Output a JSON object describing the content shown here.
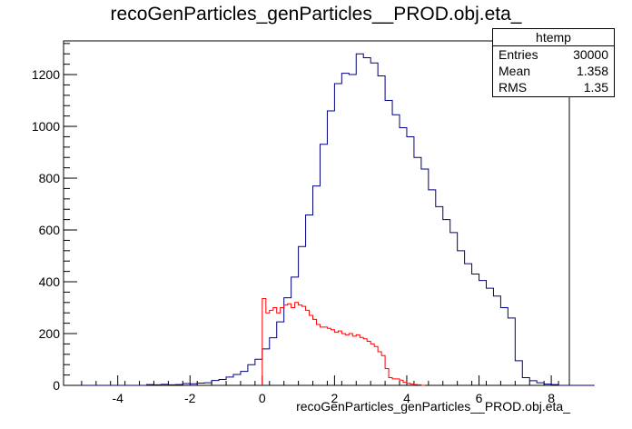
{
  "chart_data": {
    "type": "histogram",
    "title": "recoGenParticles_genParticles__PROD.obj.eta_",
    "xlabel": "recoGenParticles_genParticles__PROD.obj.eta_",
    "ylabel": "",
    "xlim": [
      -5.5,
      8.5
    ],
    "ylim": [
      0,
      1330
    ],
    "x_ticks": [
      -4,
      -2,
      0,
      2,
      4,
      6,
      8
    ],
    "y_ticks": [
      0,
      200,
      400,
      600,
      800,
      1000,
      1200
    ],
    "grid": false,
    "stats_box": {
      "title": "htemp",
      "entries_label": "Entries",
      "entries": "30000",
      "mean_label": "Mean",
      "mean": "1.358",
      "rms_label": "RMS",
      "rms": "1.35"
    },
    "series": [
      {
        "color": "#000080",
        "bin_width": 0.2,
        "bin_start": -5.0,
        "values": [
          0,
          0,
          0,
          0,
          0,
          0,
          0,
          0,
          0,
          3,
          2,
          4,
          2,
          3,
          7,
          6,
          9,
          10,
          19,
          23,
          32,
          42,
          54,
          80,
          101,
          141,
          184,
          245,
          338,
          418,
          536,
          658,
          770,
          931,
          1060,
          1165,
          1205,
          1200,
          1280,
          1265,
          1245,
          1195,
          1100,
          1045,
          995,
          960,
          880,
          835,
          755,
          690,
          640,
          590,
          520,
          470,
          430,
          405,
          375,
          345,
          300,
          260,
          95,
          30,
          18,
          10,
          5,
          3,
          0,
          0,
          0,
          0,
          0
        ]
      },
      {
        "color": "#ff0000",
        "bin_width": 0.1,
        "bin_start": 0.0,
        "values": [
          335,
          280,
          290,
          300,
          280,
          300,
          310,
          315,
          300,
          320,
          310,
          305,
          290,
          270,
          255,
          235,
          225,
          225,
          220,
          215,
          205,
          210,
          200,
          195,
          200,
          190,
          195,
          185,
          180,
          170,
          160,
          150,
          130,
          115,
          65,
          30,
          25,
          25,
          20,
          12,
          8,
          5,
          3,
          2,
          0
        ]
      }
    ]
  }
}
